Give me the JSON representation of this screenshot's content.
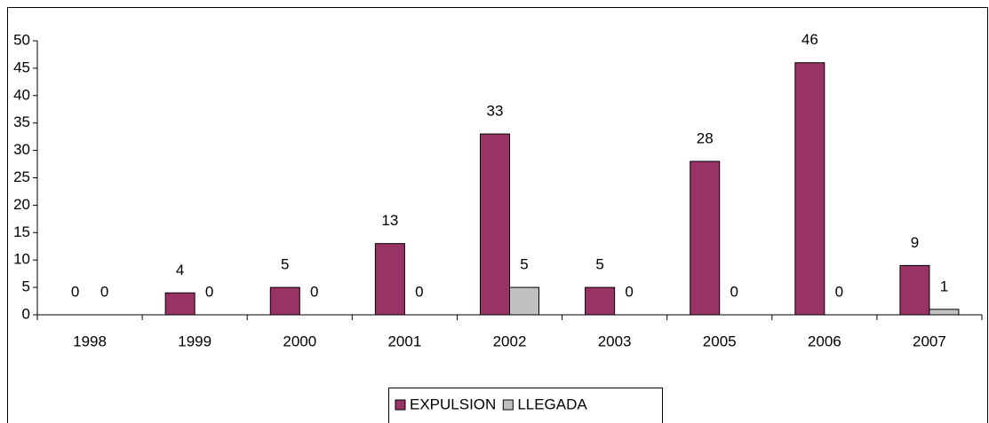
{
  "chart_data": {
    "type": "bar",
    "categories": [
      "1998",
      "1999",
      "2000",
      "2001",
      "2002",
      "2003",
      "2005",
      "2006",
      "2007"
    ],
    "series": [
      {
        "name": "EXPULSION",
        "color": "#993366",
        "values": [
          0,
          4,
          5,
          13,
          33,
          5,
          28,
          46,
          9
        ]
      },
      {
        "name": "LLEGADA",
        "color": "#c0c0c0",
        "values": [
          0,
          0,
          0,
          0,
          5,
          0,
          0,
          0,
          1
        ]
      }
    ],
    "ylim": [
      0,
      50
    ],
    "yticks": [
      0,
      5,
      10,
      15,
      20,
      25,
      30,
      35,
      40,
      45,
      50
    ],
    "legend": "bottom"
  }
}
